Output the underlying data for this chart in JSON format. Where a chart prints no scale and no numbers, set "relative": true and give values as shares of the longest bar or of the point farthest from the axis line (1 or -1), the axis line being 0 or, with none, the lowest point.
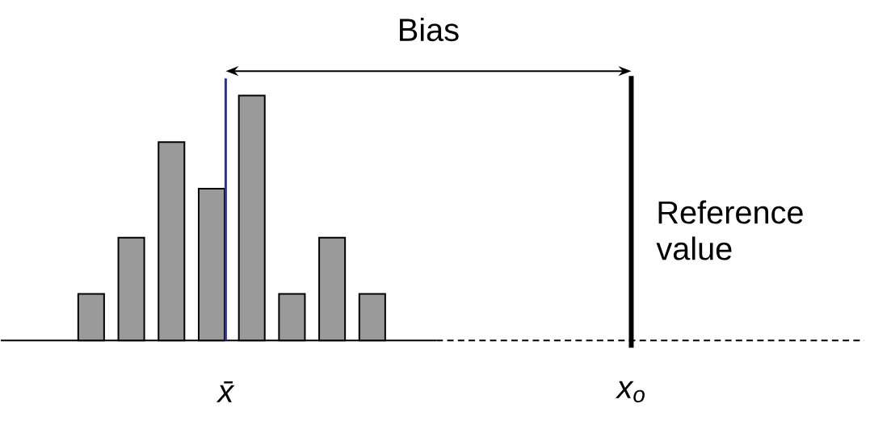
{
  "chart_data": {
    "type": "bar",
    "relative": true,
    "categories": [
      null,
      null,
      null,
      null,
      null,
      null,
      null,
      null
    ],
    "values": [
      0.19,
      0.42,
      0.81,
      0.62,
      1,
      0.19,
      0.42,
      0.19
    ],
    "color": "#9a9a9a",
    "annotations": [
      "Bias",
      "x̄",
      "x$_{o}$",
      "Reference value"
    ]
  }
}
